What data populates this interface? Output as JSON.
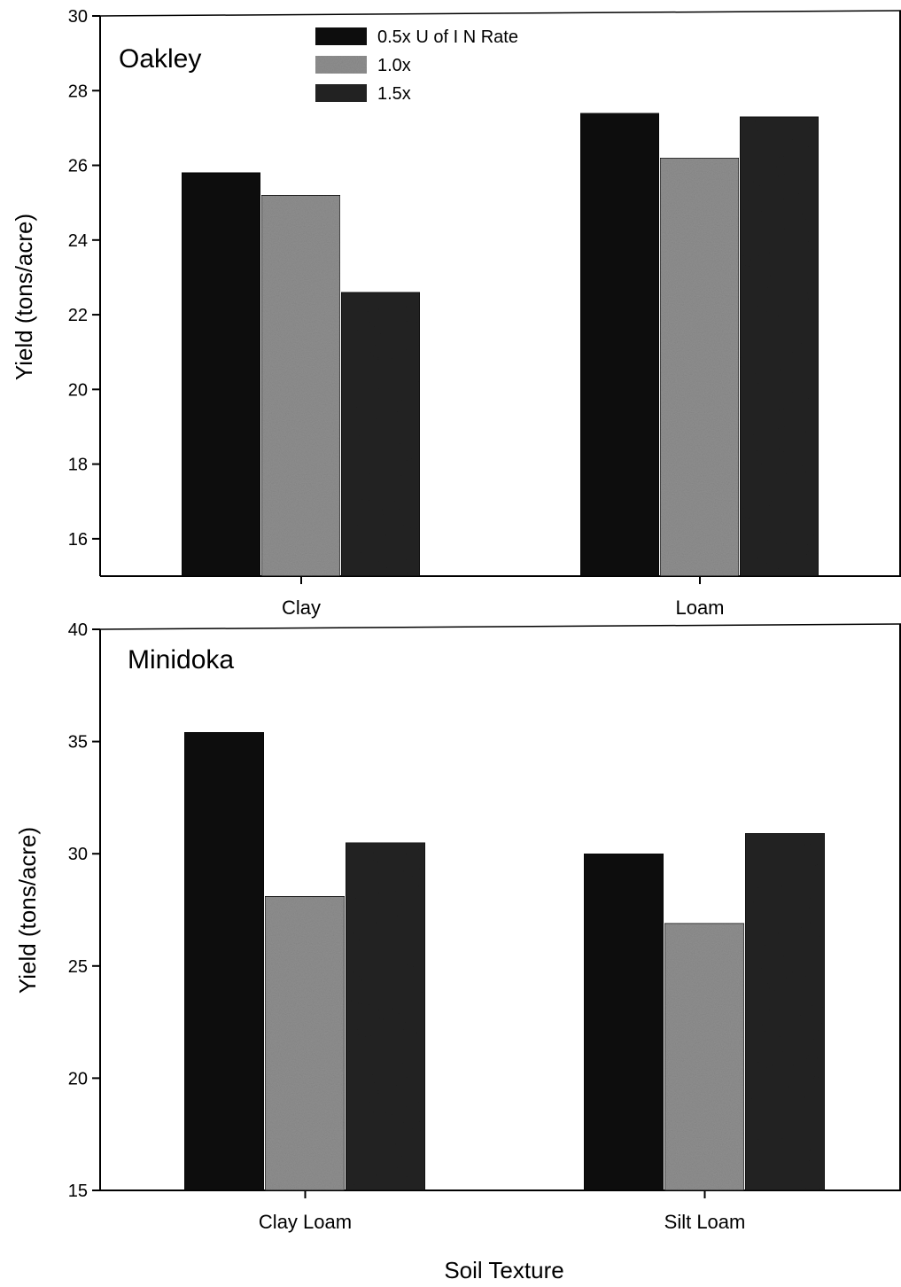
{
  "chart_data": [
    {
      "type": "bar",
      "title": "Oakley",
      "ylabel": "Yield (tons/acre)",
      "ylim": [
        15,
        30
      ],
      "yticks": [
        16,
        18,
        20,
        22,
        24,
        26,
        28,
        30
      ],
      "categories": [
        "Clay",
        "Loam"
      ],
      "series": [
        {
          "name": "0.5x U of I N Rate",
          "values": [
            25.8,
            27.4
          ],
          "color": "#111111"
        },
        {
          "name": "1.0x",
          "values": [
            25.2,
            26.2
          ],
          "color": "#8f8f8f"
        },
        {
          "name": "1.5x",
          "values": [
            22.6,
            27.3
          ],
          "color": "#232323"
        }
      ],
      "legend": "top-center"
    },
    {
      "type": "bar",
      "title": "Minidoka",
      "ylabel": "Yield (tons/acre)",
      "xlabel": "Soil Texture",
      "ylim": [
        15,
        40
      ],
      "yticks": [
        15,
        20,
        25,
        30,
        35,
        40
      ],
      "categories": [
        "Clay Loam",
        "Silt Loam"
      ],
      "series": [
        {
          "values": [
            35.4,
            30.0
          ],
          "color": "#111111"
        },
        {
          "values": [
            28.1,
            26.9
          ],
          "color": "#8f8f8f"
        },
        {
          "values": [
            30.5,
            30.9
          ],
          "color": "#232323"
        }
      ]
    }
  ]
}
